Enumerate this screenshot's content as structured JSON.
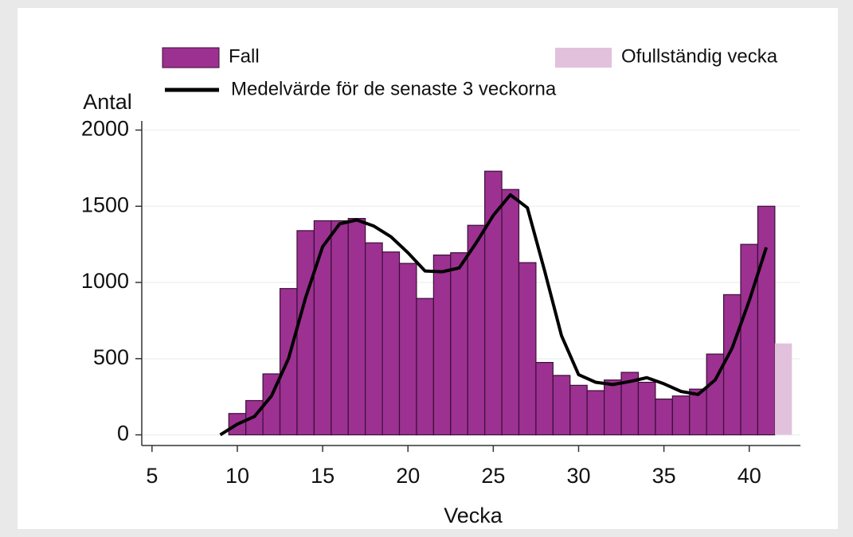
{
  "chart_data": {
    "type": "bar",
    "x_label": "Vecka",
    "y_label": "Antal",
    "x": [
      9,
      10,
      11,
      12,
      13,
      14,
      15,
      16,
      17,
      18,
      19,
      20,
      21,
      22,
      23,
      24,
      25,
      26,
      27,
      28,
      29,
      30,
      31,
      32,
      33,
      34,
      35,
      36,
      37,
      38,
      39,
      40,
      41,
      42
    ],
    "series": [
      {
        "name": "Fall",
        "type": "bar",
        "color": "#9c3191",
        "values": [
          null,
          140,
          225,
          400,
          960,
          1340,
          1405,
          1405,
          1420,
          1260,
          1200,
          1125,
          895,
          1180,
          1195,
          1375,
          1730,
          1610,
          1130,
          475,
          390,
          325,
          290,
          360,
          410,
          345,
          235,
          255,
          300,
          530,
          920,
          1250,
          1500,
          null
        ]
      },
      {
        "name": "Ofullständig vecka",
        "type": "bar",
        "color": "#e2c1dd",
        "values": [
          null,
          null,
          null,
          null,
          null,
          null,
          null,
          null,
          null,
          null,
          null,
          null,
          null,
          null,
          null,
          null,
          null,
          null,
          null,
          null,
          null,
          null,
          null,
          null,
          null,
          null,
          null,
          null,
          null,
          null,
          null,
          null,
          null,
          600
        ]
      },
      {
        "name": "Medelvärde för de senaste 3 veckorna",
        "type": "line",
        "color": "#000000",
        "values": [
          0,
          70,
          120,
          255,
          500,
          900,
          1235,
          1385,
          1410,
          1370,
          1300,
          1195,
          1075,
          1070,
          1095,
          1260,
          1440,
          1575,
          1490,
          1080,
          650,
          395,
          345,
          330,
          350,
          375,
          335,
          285,
          265,
          360,
          570,
          880,
          1230,
          null
        ]
      }
    ],
    "xlim": [
      4.4,
      43
    ],
    "xticks": [
      5,
      10,
      15,
      20,
      25,
      30,
      35,
      40
    ],
    "ylim": [
      -70,
      2060
    ],
    "yticks": [
      0,
      500,
      1000,
      1500,
      2000
    ],
    "grid": true
  }
}
